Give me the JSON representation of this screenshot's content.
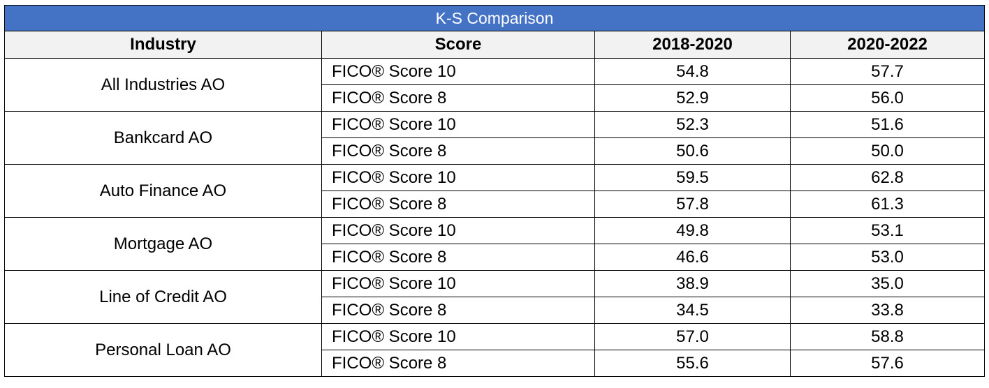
{
  "title": "K-S Comparison",
  "colors": {
    "title_bg": "#4472c4",
    "title_text": "#ffffff",
    "header_bg": "#f2f2f2",
    "border": "#000000"
  },
  "headers": [
    "Industry",
    "Score",
    "2018-2020",
    "2020-2022"
  ],
  "chart_data": {
    "type": "table",
    "title": "K-S Comparison",
    "columns": [
      "Industry",
      "Score",
      "2018-2020",
      "2020-2022"
    ],
    "rows": [
      {
        "industry": "All Industries AO",
        "scores": [
          {
            "name": "FICO® Score 10",
            "v2018_2020": "54.8",
            "v2020_2022": "57.7"
          },
          {
            "name": "FICO® Score 8",
            "v2018_2020": "52.9",
            "v2020_2022": "56.0"
          }
        ]
      },
      {
        "industry": "Bankcard AO",
        "scores": [
          {
            "name": "FICO® Score 10",
            "v2018_2020": "52.3",
            "v2020_2022": "51.6"
          },
          {
            "name": "FICO® Score 8",
            "v2018_2020": "50.6",
            "v2020_2022": "50.0"
          }
        ]
      },
      {
        "industry": "Auto Finance AO",
        "scores": [
          {
            "name": "FICO® Score 10",
            "v2018_2020": "59.5",
            "v2020_2022": "62.8"
          },
          {
            "name": "FICO® Score 8",
            "v2018_2020": "57.8",
            "v2020_2022": "61.3"
          }
        ]
      },
      {
        "industry": "Mortgage AO",
        "scores": [
          {
            "name": "FICO® Score 10",
            "v2018_2020": "49.8",
            "v2020_2022": "53.1"
          },
          {
            "name": "FICO® Score 8",
            "v2018_2020": "46.6",
            "v2020_2022": "53.0"
          }
        ]
      },
      {
        "industry": "Line of Credit AO",
        "scores": [
          {
            "name": "FICO® Score 10",
            "v2018_2020": "38.9",
            "v2020_2022": "35.0"
          },
          {
            "name": "FICO® Score 8",
            "v2018_2020": "34.5",
            "v2020_2022": "33.8"
          }
        ]
      },
      {
        "industry": "Personal Loan AO",
        "scores": [
          {
            "name": "FICO® Score 10",
            "v2018_2020": "57.0",
            "v2020_2022": "58.8"
          },
          {
            "name": "FICO® Score 8",
            "v2018_2020": "55.6",
            "v2020_2022": "57.6"
          }
        ]
      }
    ]
  }
}
